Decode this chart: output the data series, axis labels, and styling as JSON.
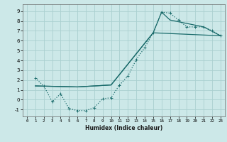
{
  "xlabel": "Humidex (Indice chaleur)",
  "ylabel": "",
  "xlim": [
    -0.5,
    23.5
  ],
  "ylim": [
    -1.7,
    9.7
  ],
  "xticks": [
    0,
    1,
    2,
    3,
    4,
    5,
    6,
    7,
    8,
    9,
    10,
    11,
    12,
    13,
    14,
    15,
    16,
    17,
    18,
    19,
    20,
    21,
    22,
    23
  ],
  "yticks": [
    -1,
    0,
    1,
    2,
    3,
    4,
    5,
    6,
    7,
    8,
    9
  ],
  "bg_color": "#cce8e8",
  "grid_color": "#aad0d0",
  "line_color": "#1a6b6b",
  "line1": {
    "x": [
      1,
      2,
      3,
      4,
      5,
      6,
      7,
      8,
      9,
      10,
      11,
      12,
      13,
      14,
      15,
      16,
      17,
      18,
      19,
      20,
      21,
      22,
      23
    ],
    "y": [
      2.2,
      1.4,
      -0.2,
      0.6,
      -0.9,
      -1.1,
      -1.1,
      -0.8,
      0.1,
      0.2,
      1.5,
      2.4,
      4.1,
      5.3,
      6.8,
      8.9,
      8.8,
      8.1,
      7.4,
      7.4,
      7.4,
      7.0,
      6.5
    ]
  },
  "line2": {
    "x": [
      1,
      6,
      10,
      15,
      16,
      17,
      21,
      23
    ],
    "y": [
      1.4,
      1.3,
      1.5,
      6.8,
      8.9,
      8.1,
      7.4,
      6.5
    ]
  },
  "line3": {
    "x": [
      1,
      6,
      10,
      15,
      23
    ],
    "y": [
      1.4,
      1.3,
      1.5,
      6.8,
      6.5
    ]
  }
}
